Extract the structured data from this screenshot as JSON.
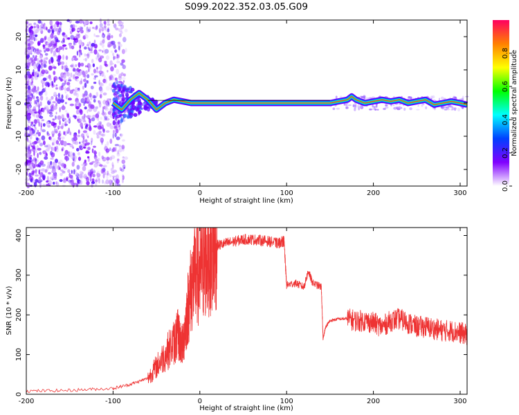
{
  "title": "S099.2022.352.03.05.G09",
  "chart_data": [
    {
      "type": "heatmap",
      "xlabel": "Height of straight line (km)",
      "ylabel": "Frequency (Hz)",
      "xlim": [
        -200,
        308
      ],
      "ylim": [
        -25,
        25
      ],
      "x_ticks": [
        "-200",
        "-100",
        "0",
        "100",
        "200",
        "300"
      ],
      "y_ticks": [
        "-20",
        "-10",
        "0",
        "10",
        "20"
      ],
      "colorbar": {
        "label": "Normalized spectral amplitude",
        "range": [
          0,
          1
        ],
        "ticks": [
          "0.0",
          "0.2",
          "0.4",
          "0.6",
          "0.8"
        ],
        "colors": [
          "#ffffff",
          "#8000ff",
          "#0040ff",
          "#00ffff",
          "#00ff00",
          "#ffff00",
          "#ff8000",
          "#ff0060"
        ]
      },
      "carrier_track": {
        "x": [
          -100,
          -90,
          -80,
          -70,
          -60,
          -50,
          -40,
          -30,
          -20,
          -10,
          0,
          50,
          100,
          150,
          160,
          170,
          175,
          180,
          190,
          200,
          210,
          220,
          230,
          240,
          250,
          260,
          270,
          280,
          290,
          300,
          308
        ],
        "y": [
          0,
          -2,
          1,
          3,
          1,
          -2,
          0,
          1,
          0.5,
          0,
          0,
          0,
          0,
          0,
          0.5,
          1,
          2,
          1,
          0,
          0.5,
          1,
          0.5,
          1,
          0,
          0.5,
          1,
          -0.5,
          0,
          0.5,
          0,
          -0.5
        ]
      }
    },
    {
      "type": "line",
      "xlabel": "Height of straight line (km)",
      "ylabel": "SNR (10 * v/v)",
      "xlim": [
        -200,
        308
      ],
      "ylim": [
        0,
        420
      ],
      "x_ticks": [
        "-200",
        "-100",
        "0",
        "100",
        "200",
        "300"
      ],
      "y_ticks": [
        "0",
        "100",
        "200",
        "300",
        "400"
      ],
      "color": "#ee3333",
      "x": [
        -200,
        -150,
        -100,
        -80,
        -60,
        -50,
        -40,
        -30,
        -25,
        -20,
        -15,
        -10,
        -5,
        0,
        5,
        10,
        15,
        20,
        30,
        40,
        50,
        60,
        70,
        80,
        90,
        95,
        97,
        100,
        110,
        120,
        125,
        130,
        140,
        142,
        145,
        150,
        160,
        170,
        180,
        190,
        200,
        210,
        220,
        230,
        240,
        250,
        260,
        270,
        280,
        290,
        300,
        308
      ],
      "y": [
        8,
        10,
        15,
        25,
        40,
        70,
        100,
        130,
        150,
        120,
        200,
        270,
        300,
        310,
        330,
        350,
        365,
        375,
        380,
        385,
        390,
        390,
        388,
        385,
        380,
        385,
        385,
        275,
        280,
        270,
        310,
        280,
        270,
        140,
        170,
        185,
        190,
        190,
        185,
        185,
        180,
        170,
        185,
        190,
        180,
        170,
        170,
        165,
        160,
        160,
        155,
        150
      ]
    }
  ]
}
